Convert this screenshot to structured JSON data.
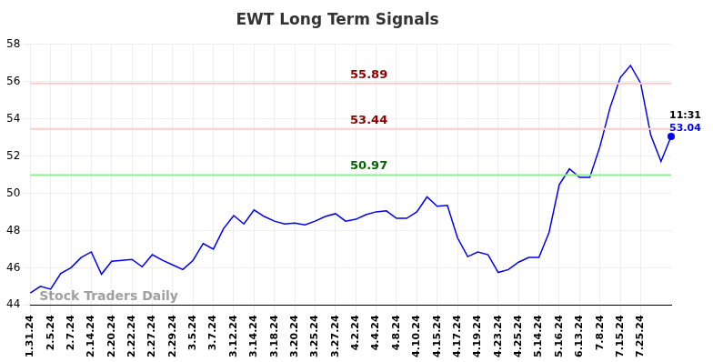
{
  "chart_data": {
    "type": "line",
    "title": "EWT Long Term Signals",
    "categories": [
      "1.31.24",
      null,
      "2.5.24",
      null,
      "2.7.24",
      null,
      "2.14.24",
      null,
      "2.20.24",
      null,
      "2.22.24",
      null,
      "2.27.24",
      null,
      "2.29.24",
      null,
      "3.5.24",
      null,
      "3.7.24",
      null,
      "3.12.24",
      null,
      "3.14.24",
      null,
      "3.18.24",
      null,
      "3.20.24",
      null,
      "3.25.24",
      null,
      "3.27.24",
      null,
      "4.2.24",
      null,
      "4.4.24",
      null,
      "4.8.24",
      null,
      "4.10.24",
      null,
      "4.15.24",
      null,
      "4.17.24",
      null,
      "4.19.24",
      null,
      "4.23.24",
      null,
      "4.25.24",
      null,
      "5.14.24",
      null,
      "5.16.24",
      null,
      "6.13.24",
      null,
      "7.8.24",
      null,
      "7.15.24",
      null,
      "7.25.24",
      null,
      null,
      null
    ],
    "values": [
      44.65,
      45.0,
      44.85,
      45.7,
      46.0,
      46.55,
      46.85,
      45.65,
      46.35,
      46.4,
      46.45,
      46.05,
      46.7,
      46.4,
      46.15,
      45.9,
      46.4,
      47.3,
      47.0,
      48.1,
      48.8,
      48.35,
      49.1,
      48.75,
      48.5,
      48.35,
      48.4,
      48.3,
      48.5,
      48.75,
      48.9,
      48.5,
      48.6,
      48.85,
      49.0,
      49.05,
      48.65,
      48.65,
      49.0,
      49.8,
      49.3,
      49.35,
      47.6,
      46.6,
      46.85,
      46.7,
      45.75,
      45.9,
      46.3,
      46.55,
      46.55,
      47.9,
      50.45,
      51.3,
      50.85,
      50.85,
      52.5,
      54.6,
      56.2,
      56.85,
      55.9,
      53.1,
      51.7,
      53.04
    ],
    "color": "#0000ee",
    "ylim": [
      44,
      58
    ],
    "yticks": [
      44,
      46,
      48,
      50,
      52,
      54,
      56,
      58
    ],
    "grid": true,
    "reference_lines": [
      {
        "value": 55.89,
        "color": "#ffcccc"
      },
      {
        "value": 53.44,
        "color": "#ffcccc"
      },
      {
        "value": 50.97,
        "color": "#90ee90"
      }
    ],
    "last_point_time": "11:31",
    "watermark": "Stock Traders Daily"
  }
}
